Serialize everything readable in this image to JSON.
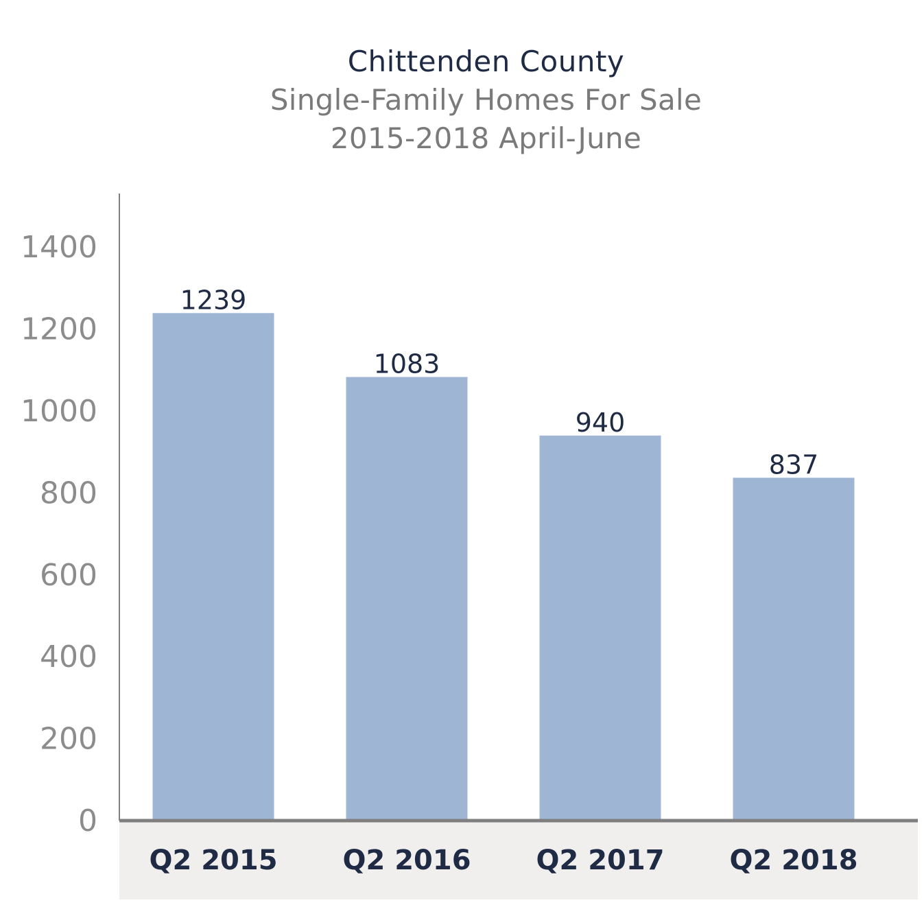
{
  "chart_data": {
    "type": "bar",
    "title": "Chittenden County",
    "subtitle_lines": [
      "Single-Family Homes For Sale",
      "2015-2018 April-June"
    ],
    "categories": [
      "Q2 2015",
      "Q2 2016",
      "Q2 2017",
      "Q2 2018"
    ],
    "values": [
      1239,
      1083,
      940,
      837
    ],
    "ylim": [
      0,
      1500
    ],
    "yticks": [
      0,
      200,
      400,
      600,
      800,
      1000,
      1200,
      1400
    ],
    "grid": false,
    "legend": "none",
    "colors": {
      "bar": "#9eb5d3",
      "title": "#1f2b44",
      "subtitle": "#7a7a7a",
      "ytick": "#8c8c8c",
      "axis": "#7f7f7f",
      "x_band": "#f0efed",
      "label": "#1f2b44"
    }
  }
}
